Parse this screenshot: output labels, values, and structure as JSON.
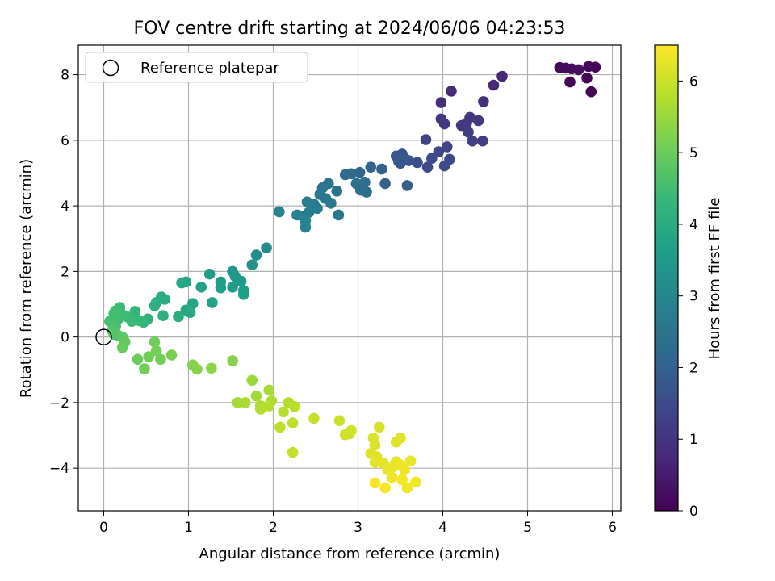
{
  "chart_data": {
    "type": "scatter",
    "title": "FOV centre drift starting at 2024/06/06 04:23:53",
    "xlabel": "Angular distance from reference (arcmin)",
    "ylabel": "Rotation from reference (arcmin)",
    "xlim": [
      -0.3,
      6.1
    ],
    "ylim": [
      -5.3,
      8.9
    ],
    "xticks": [
      "0",
      "1",
      "2",
      "3",
      "4",
      "5",
      "6"
    ],
    "yticks": [
      "−4",
      "−2",
      "0",
      "2",
      "4",
      "6",
      "8"
    ],
    "grid": true,
    "legend": {
      "placement": "top-left",
      "label": "Reference platepar"
    },
    "reference_point": {
      "x": 0,
      "y": 0
    },
    "colorbar": {
      "label": "Hours from first FF file",
      "range": [
        0,
        6.5
      ],
      "ticks": [
        "0",
        "1",
        "2",
        "3",
        "4",
        "5",
        "6"
      ],
      "colormap": "viridis",
      "colors": [
        "#440154",
        "#482878",
        "#3e4989",
        "#31688e",
        "#26828e",
        "#1f9e89",
        "#35b779",
        "#6ece58",
        "#b5de2b",
        "#fde725"
      ]
    },
    "points": [
      {
        "x": 5.38,
        "y": 8.22,
        "h": 0.15
      },
      {
        "x": 5.45,
        "y": 8.2,
        "h": 0.2
      },
      {
        "x": 5.52,
        "y": 8.18,
        "h": 0.22
      },
      {
        "x": 5.6,
        "y": 8.15,
        "h": 0.25
      },
      {
        "x": 5.72,
        "y": 8.25,
        "h": 0.12
      },
      {
        "x": 5.8,
        "y": 8.23,
        "h": 0.1
      },
      {
        "x": 5.5,
        "y": 7.78,
        "h": 0.05
      },
      {
        "x": 5.7,
        "y": 7.9,
        "h": 0.08
      },
      {
        "x": 5.75,
        "y": 7.48,
        "h": 0.03
      },
      {
        "x": 4.7,
        "y": 7.95,
        "h": 0.7
      },
      {
        "x": 4.6,
        "y": 7.68,
        "h": 0.75
      },
      {
        "x": 4.48,
        "y": 7.18,
        "h": 0.85
      },
      {
        "x": 4.1,
        "y": 7.5,
        "h": 0.8
      },
      {
        "x": 3.98,
        "y": 7.15,
        "h": 0.9
      },
      {
        "x": 3.98,
        "y": 6.65,
        "h": 1.0
      },
      {
        "x": 4.02,
        "y": 6.5,
        "h": 1.05
      },
      {
        "x": 4.22,
        "y": 6.45,
        "h": 1.1
      },
      {
        "x": 4.28,
        "y": 6.52,
        "h": 1.1
      },
      {
        "x": 4.32,
        "y": 6.7,
        "h": 1.05
      },
      {
        "x": 4.42,
        "y": 6.6,
        "h": 1.1
      },
      {
        "x": 4.3,
        "y": 6.25,
        "h": 1.2
      },
      {
        "x": 4.35,
        "y": 5.98,
        "h": 1.25
      },
      {
        "x": 4.47,
        "y": 5.98,
        "h": 1.2
      },
      {
        "x": 3.8,
        "y": 6.02,
        "h": 1.3
      },
      {
        "x": 3.95,
        "y": 5.65,
        "h": 1.4
      },
      {
        "x": 4.05,
        "y": 5.8,
        "h": 1.35
      },
      {
        "x": 3.87,
        "y": 5.45,
        "h": 1.45
      },
      {
        "x": 3.82,
        "y": 5.18,
        "h": 1.5
      },
      {
        "x": 4.02,
        "y": 5.22,
        "h": 1.5
      },
      {
        "x": 4.08,
        "y": 5.42,
        "h": 1.45
      },
      {
        "x": 3.7,
        "y": 5.32,
        "h": 1.6
      },
      {
        "x": 3.6,
        "y": 5.38,
        "h": 1.7
      },
      {
        "x": 3.52,
        "y": 5.58,
        "h": 1.75
      },
      {
        "x": 3.45,
        "y": 5.52,
        "h": 1.75
      },
      {
        "x": 3.5,
        "y": 5.3,
        "h": 1.85
      },
      {
        "x": 3.55,
        "y": 5.45,
        "h": 1.8
      },
      {
        "x": 3.48,
        "y": 5.35,
        "h": 1.85
      },
      {
        "x": 3.58,
        "y": 4.62,
        "h": 1.9
      },
      {
        "x": 3.32,
        "y": 4.68,
        "h": 2.0
      },
      {
        "x": 3.28,
        "y": 5.12,
        "h": 2.05
      },
      {
        "x": 3.15,
        "y": 5.18,
        "h": 2.1
      },
      {
        "x": 3.02,
        "y": 5.02,
        "h": 2.15
      },
      {
        "x": 2.92,
        "y": 4.98,
        "h": 2.2
      },
      {
        "x": 2.85,
        "y": 4.95,
        "h": 2.25
      },
      {
        "x": 3.08,
        "y": 4.72,
        "h": 2.3
      },
      {
        "x": 2.98,
        "y": 4.68,
        "h": 2.35
      },
      {
        "x": 3.1,
        "y": 4.42,
        "h": 2.4
      },
      {
        "x": 3.03,
        "y": 4.48,
        "h": 2.4
      },
      {
        "x": 2.75,
        "y": 4.45,
        "h": 2.5
      },
      {
        "x": 2.65,
        "y": 4.68,
        "h": 2.5
      },
      {
        "x": 2.58,
        "y": 4.55,
        "h": 2.55
      },
      {
        "x": 2.55,
        "y": 4.35,
        "h": 2.6
      },
      {
        "x": 2.62,
        "y": 4.22,
        "h": 2.6
      },
      {
        "x": 2.68,
        "y": 4.08,
        "h": 2.65
      },
      {
        "x": 2.77,
        "y": 3.72,
        "h": 2.6
      },
      {
        "x": 2.52,
        "y": 3.92,
        "h": 2.7
      },
      {
        "x": 2.48,
        "y": 4.05,
        "h": 2.7
      },
      {
        "x": 2.4,
        "y": 4.12,
        "h": 2.75
      },
      {
        "x": 2.42,
        "y": 3.8,
        "h": 2.8
      },
      {
        "x": 2.35,
        "y": 3.68,
        "h": 2.8
      },
      {
        "x": 2.38,
        "y": 3.55,
        "h": 2.85
      },
      {
        "x": 2.38,
        "y": 3.35,
        "h": 2.85
      },
      {
        "x": 2.28,
        "y": 3.72,
        "h": 2.9
      },
      {
        "x": 2.07,
        "y": 3.82,
        "h": 2.9
      },
      {
        "x": 1.92,
        "y": 2.72,
        "h": 3.1
      },
      {
        "x": 1.8,
        "y": 2.5,
        "h": 3.2
      },
      {
        "x": 1.75,
        "y": 2.2,
        "h": 3.3
      },
      {
        "x": 1.52,
        "y": 2.0,
        "h": 3.4
      },
      {
        "x": 1.55,
        "y": 1.85,
        "h": 3.45
      },
      {
        "x": 1.62,
        "y": 1.7,
        "h": 3.5
      },
      {
        "x": 1.52,
        "y": 1.52,
        "h": 3.55
      },
      {
        "x": 1.65,
        "y": 1.42,
        "h": 3.6
      },
      {
        "x": 1.65,
        "y": 1.3,
        "h": 3.6
      },
      {
        "x": 1.38,
        "y": 1.68,
        "h": 3.6
      },
      {
        "x": 1.38,
        "y": 1.5,
        "h": 3.65
      },
      {
        "x": 1.25,
        "y": 1.92,
        "h": 3.55
      },
      {
        "x": 1.15,
        "y": 1.52,
        "h": 3.7
      },
      {
        "x": 1.28,
        "y": 1.05,
        "h": 3.75
      },
      {
        "x": 1.05,
        "y": 1.02,
        "h": 3.8
      },
      {
        "x": 0.97,
        "y": 0.82,
        "h": 3.85
      },
      {
        "x": 1.02,
        "y": 0.75,
        "h": 3.9
      },
      {
        "x": 0.97,
        "y": 1.68,
        "h": 3.8
      },
      {
        "x": 0.92,
        "y": 1.65,
        "h": 3.85
      },
      {
        "x": 0.72,
        "y": 1.15,
        "h": 4.0
      },
      {
        "x": 0.68,
        "y": 1.22,
        "h": 4.0
      },
      {
        "x": 0.62,
        "y": 1.05,
        "h": 4.05
      },
      {
        "x": 0.6,
        "y": 0.95,
        "h": 4.1
      },
      {
        "x": 0.7,
        "y": 0.65,
        "h": 4.1
      },
      {
        "x": 0.88,
        "y": 0.62,
        "h": 4.05
      },
      {
        "x": 0.52,
        "y": 0.55,
        "h": 4.2
      },
      {
        "x": 0.47,
        "y": 0.45,
        "h": 4.3
      },
      {
        "x": 0.37,
        "y": 0.78,
        "h": 4.25
      },
      {
        "x": 0.42,
        "y": 0.5,
        "h": 4.35
      },
      {
        "x": 0.33,
        "y": 0.48,
        "h": 4.4
      },
      {
        "x": 0.27,
        "y": 0.62,
        "h": 4.4
      },
      {
        "x": 0.22,
        "y": 0.68,
        "h": 4.45
      },
      {
        "x": 0.19,
        "y": 0.9,
        "h": 4.4
      },
      {
        "x": 0.14,
        "y": 0.8,
        "h": 4.5
      },
      {
        "x": 0.17,
        "y": 0.55,
        "h": 4.5
      },
      {
        "x": 0.12,
        "y": 0.72,
        "h": 4.5
      },
      {
        "x": 0.07,
        "y": 0.48,
        "h": 4.55
      },
      {
        "x": 0.14,
        "y": 0.32,
        "h": 4.6
      },
      {
        "x": 0.1,
        "y": 0.2,
        "h": 4.7
      },
      {
        "x": 0.12,
        "y": 0.08,
        "h": 4.75
      },
      {
        "x": 0.17,
        "y": 0.05,
        "h": 4.7
      },
      {
        "x": 0.22,
        "y": 0.0,
        "h": 4.8
      },
      {
        "x": 0.25,
        "y": -0.15,
        "h": 4.9
      },
      {
        "x": 0.22,
        "y": -0.32,
        "h": 4.95
      },
      {
        "x": 0.4,
        "y": -0.68,
        "h": 5.0
      },
      {
        "x": 0.53,
        "y": -0.6,
        "h": 5.05
      },
      {
        "x": 0.48,
        "y": -0.97,
        "h": 5.1
      },
      {
        "x": 0.6,
        "y": -0.15,
        "h": 5.05
      },
      {
        "x": 0.62,
        "y": -0.42,
        "h": 5.1
      },
      {
        "x": 0.67,
        "y": -0.68,
        "h": 5.1
      },
      {
        "x": 0.8,
        "y": -0.55,
        "h": 5.15
      },
      {
        "x": 1.05,
        "y": -0.85,
        "h": 5.25
      },
      {
        "x": 1.1,
        "y": -0.98,
        "h": 5.3
      },
      {
        "x": 1.27,
        "y": -0.95,
        "h": 5.35
      },
      {
        "x": 1.52,
        "y": -0.72,
        "h": 5.3
      },
      {
        "x": 1.75,
        "y": -1.32,
        "h": 5.5
      },
      {
        "x": 1.67,
        "y": -2.0,
        "h": 5.65
      },
      {
        "x": 1.58,
        "y": -2.0,
        "h": 5.6
      },
      {
        "x": 1.8,
        "y": -1.8,
        "h": 5.6
      },
      {
        "x": 1.85,
        "y": -2.1,
        "h": 5.7
      },
      {
        "x": 1.85,
        "y": -2.2,
        "h": 5.75
      },
      {
        "x": 1.95,
        "y": -1.62,
        "h": 5.6
      },
      {
        "x": 1.98,
        "y": -1.95,
        "h": 5.7
      },
      {
        "x": 1.95,
        "y": -2.1,
        "h": 5.75
      },
      {
        "x": 2.12,
        "y": -2.28,
        "h": 5.8
      },
      {
        "x": 2.18,
        "y": -2.0,
        "h": 5.75
      },
      {
        "x": 2.25,
        "y": -2.12,
        "h": 5.8
      },
      {
        "x": 2.08,
        "y": -2.75,
        "h": 5.85
      },
      {
        "x": 2.23,
        "y": -2.62,
        "h": 5.85
      },
      {
        "x": 2.23,
        "y": -3.52,
        "h": 5.9
      },
      {
        "x": 2.48,
        "y": -2.48,
        "h": 5.95
      },
      {
        "x": 2.78,
        "y": -2.55,
        "h": 6.0
      },
      {
        "x": 2.85,
        "y": -2.98,
        "h": 6.05
      },
      {
        "x": 2.92,
        "y": -2.85,
        "h": 6.05
      },
      {
        "x": 2.9,
        "y": -2.95,
        "h": 6.05
      },
      {
        "x": 3.25,
        "y": -2.75,
        "h": 6.1
      },
      {
        "x": 3.18,
        "y": -3.08,
        "h": 6.15
      },
      {
        "x": 3.2,
        "y": -3.3,
        "h": 6.15
      },
      {
        "x": 3.15,
        "y": -3.55,
        "h": 6.2
      },
      {
        "x": 3.22,
        "y": -3.65,
        "h": 6.2
      },
      {
        "x": 3.2,
        "y": -3.82,
        "h": 6.25
      },
      {
        "x": 3.3,
        "y": -3.85,
        "h": 6.25
      },
      {
        "x": 3.35,
        "y": -4.05,
        "h": 6.3
      },
      {
        "x": 3.42,
        "y": -3.95,
        "h": 6.3
      },
      {
        "x": 3.45,
        "y": -3.8,
        "h": 6.3
      },
      {
        "x": 3.5,
        "y": -3.9,
        "h": 6.35
      },
      {
        "x": 3.62,
        "y": -3.78,
        "h": 6.3
      },
      {
        "x": 3.55,
        "y": -4.05,
        "h": 6.35
      },
      {
        "x": 3.4,
        "y": -4.28,
        "h": 6.35
      },
      {
        "x": 3.52,
        "y": -4.35,
        "h": 6.4
      },
      {
        "x": 3.58,
        "y": -4.6,
        "h": 6.4
      },
      {
        "x": 3.68,
        "y": -4.42,
        "h": 6.4
      },
      {
        "x": 3.32,
        "y": -4.6,
        "h": 6.45
      },
      {
        "x": 3.2,
        "y": -4.45,
        "h": 6.45
      },
      {
        "x": 3.45,
        "y": -3.2,
        "h": 6.2
      },
      {
        "x": 3.5,
        "y": -3.08,
        "h": 6.2
      }
    ]
  }
}
